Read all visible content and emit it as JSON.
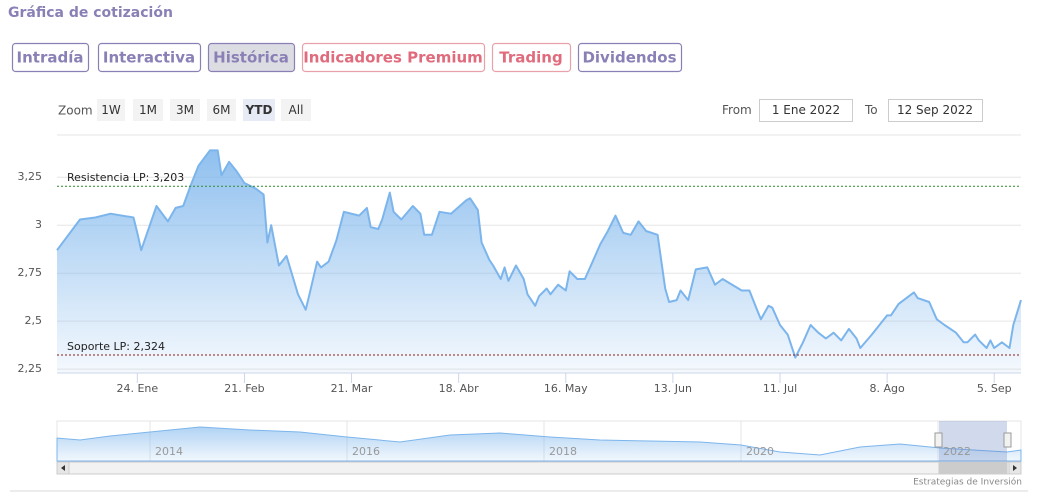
{
  "header": {
    "title": "Gráfica de cotización"
  },
  "tabs": [
    "Intradía",
    "Interactiva",
    "Histórica",
    "Indicadores Premium",
    "Trading",
    "Dividendos"
  ],
  "zoom": {
    "label": "Zoom",
    "buttons": [
      "1W",
      "1M",
      "3M",
      "6M",
      "YTD",
      "All"
    ]
  },
  "range": {
    "from_label": "From",
    "from": "1 Ene 2022",
    "to_label": "To",
    "to": "12 Sep 2022"
  },
  "chart_data": {
    "type": "area",
    "color": "#7cb5ec",
    "x": [
      "2022-01-03",
      "2022-01-06",
      "2022-01-09",
      "2022-01-13",
      "2022-01-17",
      "2022-01-23",
      "2022-01-24",
      "2022-01-25",
      "2022-01-29",
      "2022-02-01",
      "2022-02-03",
      "2022-02-05",
      "2022-02-07",
      "2022-02-09",
      "2022-02-12",
      "2022-02-14",
      "2022-02-15",
      "2022-02-17",
      "2022-02-19",
      "2022-02-21",
      "2022-02-24",
      "2022-02-26",
      "2022-02-27",
      "2022-02-28",
      "2022-03-02",
      "2022-03-04",
      "2022-03-07",
      "2022-03-09",
      "2022-03-10",
      "2022-03-12",
      "2022-03-13",
      "2022-03-15",
      "2022-03-17",
      "2022-03-19",
      "2022-03-23",
      "2022-03-25",
      "2022-03-26",
      "2022-03-28",
      "2022-03-29",
      "2022-03-31",
      "2022-04-01",
      "2022-04-03",
      "2022-04-06",
      "2022-04-08",
      "2022-04-09",
      "2022-04-11",
      "2022-04-13",
      "2022-04-16",
      "2022-04-20",
      "2022-04-21",
      "2022-04-23",
      "2022-04-24",
      "2022-04-26",
      "2022-04-27",
      "2022-04-29",
      "2022-04-30",
      "2022-05-01",
      "2022-05-03",
      "2022-05-05",
      "2022-05-06",
      "2022-05-08",
      "2022-05-09",
      "2022-05-11",
      "2022-05-12",
      "2022-05-14",
      "2022-05-16",
      "2022-05-17",
      "2022-05-19",
      "2022-05-21",
      "2022-05-23",
      "2022-05-25",
      "2022-05-27",
      "2022-05-29",
      "2022-05-31",
      "2022-06-02",
      "2022-06-04",
      "2022-06-06",
      "2022-06-09",
      "2022-06-11",
      "2022-06-12",
      "2022-06-14",
      "2022-06-15",
      "2022-06-17",
      "2022-06-19",
      "2022-06-22",
      "2022-06-24",
      "2022-06-26",
      "2022-07-01",
      "2022-07-03",
      "2022-07-05",
      "2022-07-06",
      "2022-07-08",
      "2022-07-09",
      "2022-07-11",
      "2022-07-13",
      "2022-07-15",
      "2022-07-17",
      "2022-07-19",
      "2022-07-21",
      "2022-07-23",
      "2022-07-25",
      "2022-07-27",
      "2022-07-29",
      "2022-07-31",
      "2022-08-01",
      "2022-08-04",
      "2022-08-08",
      "2022-08-09",
      "2022-08-11",
      "2022-08-15",
      "2022-08-16",
      "2022-08-19",
      "2022-08-21",
      "2022-08-23",
      "2022-08-26",
      "2022-08-28",
      "2022-08-29",
      "2022-08-31",
      "2022-09-01",
      "2022-09-03",
      "2022-09-04",
      "2022-09-05",
      "2022-09-07",
      "2022-09-09",
      "2022-09-10",
      "2022-09-12"
    ],
    "values": [
      2.87,
      2.95,
      3.03,
      3.04,
      3.06,
      3.04,
      2.96,
      2.87,
      3.1,
      3.02,
      3.09,
      3.1,
      3.21,
      3.31,
      3.39,
      3.39,
      3.26,
      3.33,
      3.28,
      3.22,
      3.19,
      3.16,
      2.91,
      3.0,
      2.79,
      2.84,
      2.64,
      2.56,
      2.64,
      2.81,
      2.78,
      2.81,
      2.92,
      3.07,
      3.05,
      3.09,
      2.99,
      2.98,
      3.03,
      3.17,
      3.07,
      3.03,
      3.1,
      3.06,
      2.95,
      2.95,
      3.07,
      3.06,
      3.13,
      3.14,
      3.08,
      2.91,
      2.82,
      2.79,
      2.72,
      2.78,
      2.71,
      2.79,
      2.72,
      2.64,
      2.58,
      2.63,
      2.67,
      2.64,
      2.69,
      2.66,
      2.76,
      2.72,
      2.72,
      2.81,
      2.9,
      2.97,
      3.05,
      2.96,
      2.95,
      3.02,
      2.97,
      2.95,
      2.67,
      2.6,
      2.61,
      2.66,
      2.61,
      2.77,
      2.78,
      2.69,
      2.72,
      2.66,
      2.66,
      2.56,
      2.51,
      2.58,
      2.57,
      2.48,
      2.43,
      2.31,
      2.39,
      2.48,
      2.44,
      2.41,
      2.44,
      2.4,
      2.46,
      2.41,
      2.36,
      2.43,
      2.53,
      2.53,
      2.59,
      2.65,
      2.62,
      2.6,
      2.51,
      2.48,
      2.44,
      2.39,
      2.39,
      2.43,
      2.4,
      2.36,
      2.4,
      2.36,
      2.39,
      2.36,
      2.48,
      2.61
    ],
    "xlim": [
      "2022-01-03",
      "2022-09-12"
    ],
    "xticks": [
      {
        "value": "2022-01-24",
        "label": "24. Ene"
      },
      {
        "value": "2022-02-21",
        "label": "21. Feb"
      },
      {
        "value": "2022-03-21",
        "label": "21. Mar"
      },
      {
        "value": "2022-04-18",
        "label": "18. Abr"
      },
      {
        "value": "2022-05-16",
        "label": "16. May"
      },
      {
        "value": "2022-06-13",
        "label": "13. Jun"
      },
      {
        "value": "2022-07-11",
        "label": "11. Jul"
      },
      {
        "value": "2022-08-08",
        "label": "8. Ago"
      },
      {
        "value": "2022-09-05",
        "label": "5. Sep"
      }
    ],
    "ylim": [
      2.23,
      3.47
    ],
    "yticks": [
      {
        "value": 2.25,
        "label": "2,25"
      },
      {
        "value": 2.5,
        "label": "2,5"
      },
      {
        "value": 2.75,
        "label": "2,75"
      },
      3,
      {
        "value": 3.25,
        "label": "3,25"
      }
    ],
    "grid": true,
    "plot_lines": [
      {
        "label": "Resistencia LP: 3,203",
        "value": 3.203,
        "color": "#2e8b2e"
      },
      {
        "label": "Soporte LP: 2,324",
        "value": 2.324,
        "color": "#8b1a1a"
      }
    ]
  },
  "navigator": {
    "labels": [
      "2014",
      "2016",
      "2018",
      "2020",
      "2022"
    ]
  },
  "credit": "Estrategias de Inversión"
}
